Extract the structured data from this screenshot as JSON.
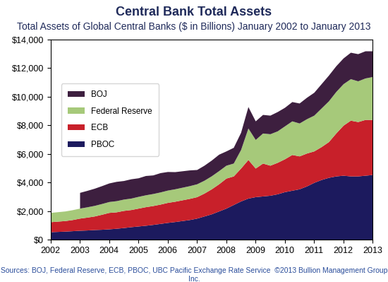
{
  "chart_data": {
    "type": "area",
    "stacked": true,
    "title": "Central Bank Total Assets",
    "subtitle": "Total Assets of Global Central Banks ($ in Billions) January 2002 to January 2013",
    "source": "Sources: BOJ, Federal Reserve, ECB, PBOC, UBC Pacific Exchange Rate Service  ©2013 Bullion Management Group Inc.",
    "x": [
      2002.0,
      2002.25,
      2002.5,
      2002.75,
      2003.0,
      2003.25,
      2003.5,
      2003.75,
      2004.0,
      2004.25,
      2004.5,
      2004.75,
      2005.0,
      2005.25,
      2005.5,
      2005.75,
      2006.0,
      2006.25,
      2006.5,
      2006.75,
      2007.0,
      2007.25,
      2007.5,
      2007.75,
      2008.0,
      2008.25,
      2008.5,
      2008.75,
      2009.0,
      2009.25,
      2009.5,
      2009.75,
      2010.0,
      2010.25,
      2010.5,
      2010.75,
      2011.0,
      2011.25,
      2011.5,
      2011.75,
      2012.0,
      2012.25,
      2012.5,
      2012.75,
      2013.0
    ],
    "series": [
      {
        "name": "PBOC",
        "color": "#1c1a5e",
        "values": [
          550,
          570,
          590,
          620,
          650,
          670,
          700,
          720,
          750,
          790,
          840,
          900,
          950,
          1000,
          1060,
          1130,
          1200,
          1260,
          1330,
          1400,
          1500,
          1650,
          1800,
          2000,
          2200,
          2450,
          2700,
          2900,
          3000,
          3050,
          3100,
          3200,
          3350,
          3450,
          3550,
          3750,
          4000,
          4200,
          4350,
          4450,
          4500,
          4450,
          4450,
          4500,
          4550
        ]
      },
      {
        "name": "ECB",
        "color": "#c8202a",
        "values": [
          700,
          720,
          740,
          780,
          850,
          900,
          950,
          1050,
          1150,
          1150,
          1200,
          1200,
          1250,
          1300,
          1320,
          1350,
          1400,
          1420,
          1450,
          1480,
          1500,
          1600,
          1750,
          1900,
          2100,
          2000,
          2300,
          2700,
          2000,
          2300,
          2100,
          2200,
          2300,
          2500,
          2300,
          2300,
          2200,
          2300,
          2500,
          3000,
          3500,
          3900,
          3800,
          3900,
          3850
        ]
      },
      {
        "name": "Federal Reserve",
        "color": "#a6c97a",
        "values": [
          650,
          660,
          670,
          690,
          700,
          720,
          740,
          750,
          760,
          780,
          790,
          800,
          820,
          830,
          840,
          850,
          860,
          870,
          880,
          890,
          900,
          900,
          910,
          920,
          900,
          900,
          1300,
          2200,
          2000,
          2100,
          2200,
          2200,
          2300,
          2350,
          2300,
          2400,
          2500,
          2700,
          2850,
          2900,
          2900,
          2900,
          2850,
          2900,
          3000
        ]
      },
      {
        "name": "BOJ",
        "color": "#3d1f3f",
        "values": [
          null,
          null,
          null,
          null,
          1100,
          1150,
          1200,
          1250,
          1300,
          1350,
          1300,
          1350,
          1300,
          1350,
          1300,
          1350,
          1300,
          1200,
          1150,
          1100,
          1000,
          1050,
          1100,
          1150,
          1000,
          1100,
          1200,
          1500,
          1300,
          1300,
          1300,
          1350,
          1300,
          1350,
          1400,
          1500,
          1600,
          1700,
          1800,
          1800,
          1800,
          1850,
          1900,
          1900,
          1800
        ]
      }
    ],
    "xlim": [
      2002,
      2013
    ],
    "xticks": [
      2002,
      2003,
      2004,
      2005,
      2006,
      2007,
      2008,
      2009,
      2010,
      2011,
      2012,
      2013
    ],
    "ylim": [
      0,
      14000
    ],
    "yticks": [
      {
        "value": 0,
        "label": "$0"
      },
      {
        "value": 2000,
        "label": "$2,000"
      },
      {
        "value": 4000,
        "label": "$4,000"
      },
      {
        "value": 6000,
        "label": "$6,000"
      },
      {
        "value": 8000,
        "label": "$8,000"
      },
      {
        "value": 10000,
        "label": "$10,000"
      },
      {
        "value": 12000,
        "label": "$12,000"
      },
      {
        "value": 14000,
        "label": "$14,000"
      }
    ],
    "grid": false,
    "legend": "upper left"
  }
}
